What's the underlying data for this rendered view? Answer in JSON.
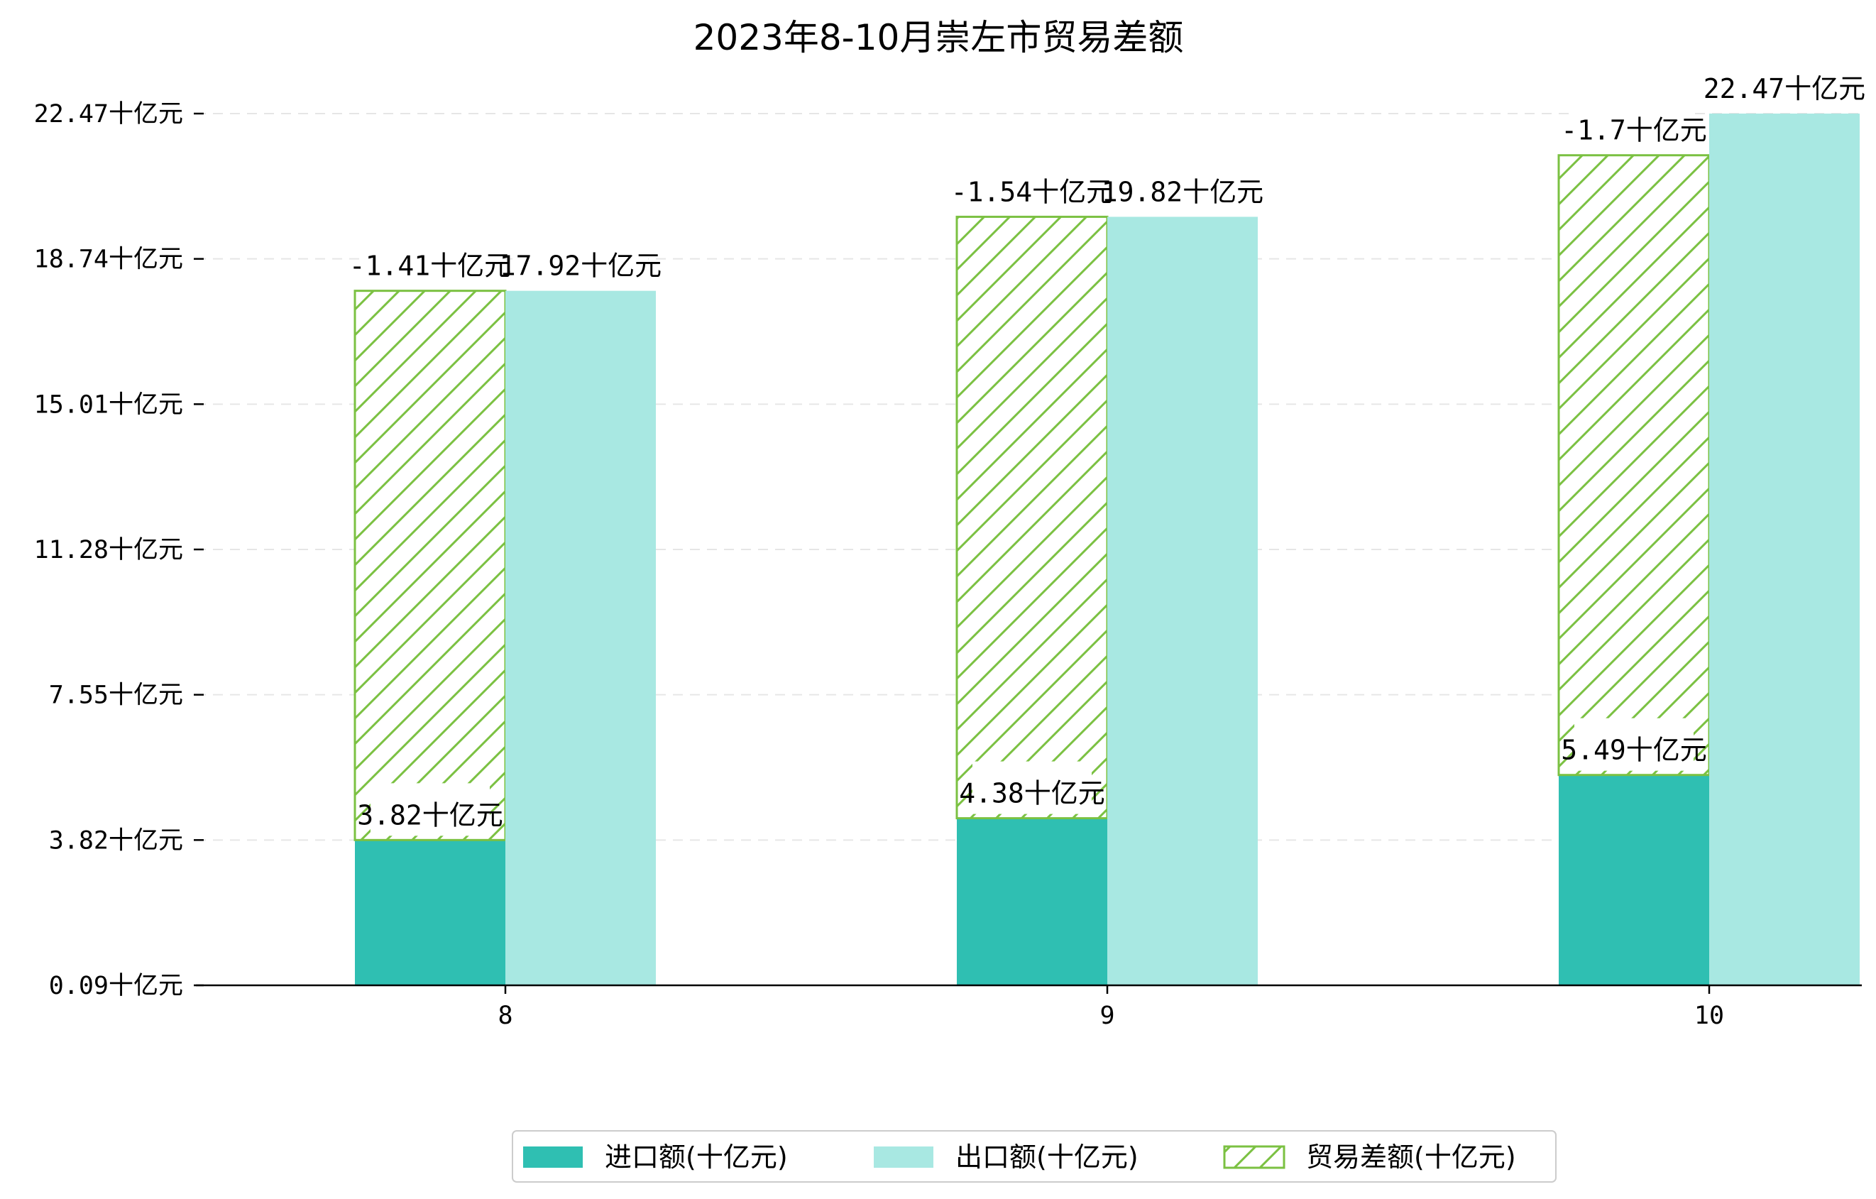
{
  "colors": {
    "import": "#2fbfb2",
    "export": "#a8e8e2",
    "balance": "#7bc142",
    "axis": "#000000",
    "grid": "#e6e6e6"
  },
  "chart_data": {
    "type": "bar",
    "title": "2023年8-10月崇左市贸易差额",
    "xlabel": "",
    "ylabel": "",
    "categories": [
      "8",
      "9",
      "10"
    ],
    "ylim": [
      0.09,
      22.47
    ],
    "yticks": [
      0.09,
      3.82,
      7.55,
      11.28,
      15.01,
      18.74,
      22.47
    ],
    "ytick_labels": [
      "0.09十亿元",
      "3.82十亿元",
      "7.55十亿元",
      "11.28十亿元",
      "15.01十亿元",
      "18.74十亿元",
      "22.47十亿元"
    ],
    "grid": "horizontal dashed",
    "legend_position": "bottom-center",
    "series": [
      {
        "name": "进口额(十亿元)",
        "values": [
          3.82,
          4.38,
          5.49
        ],
        "labels": [
          "3.82十亿元",
          "4.38十亿元",
          "5.49十亿元"
        ]
      },
      {
        "name": "出口额(十亿元)",
        "values": [
          17.92,
          19.82,
          22.47
        ],
        "labels": [
          "17.92十亿元",
          "19.82十亿元",
          "22.47十亿元"
        ]
      },
      {
        "name": "贸易差额(十亿元)",
        "values": [
          -1.41,
          -1.54,
          -1.7
        ],
        "labels": [
          "-1.41十亿元",
          "-1.54十亿元",
          "-1.7十亿元"
        ],
        "stacked_on": "进口额(十亿元)",
        "bar_top": [
          17.92,
          19.82,
          21.4
        ],
        "pattern": "hatch"
      }
    ]
  }
}
